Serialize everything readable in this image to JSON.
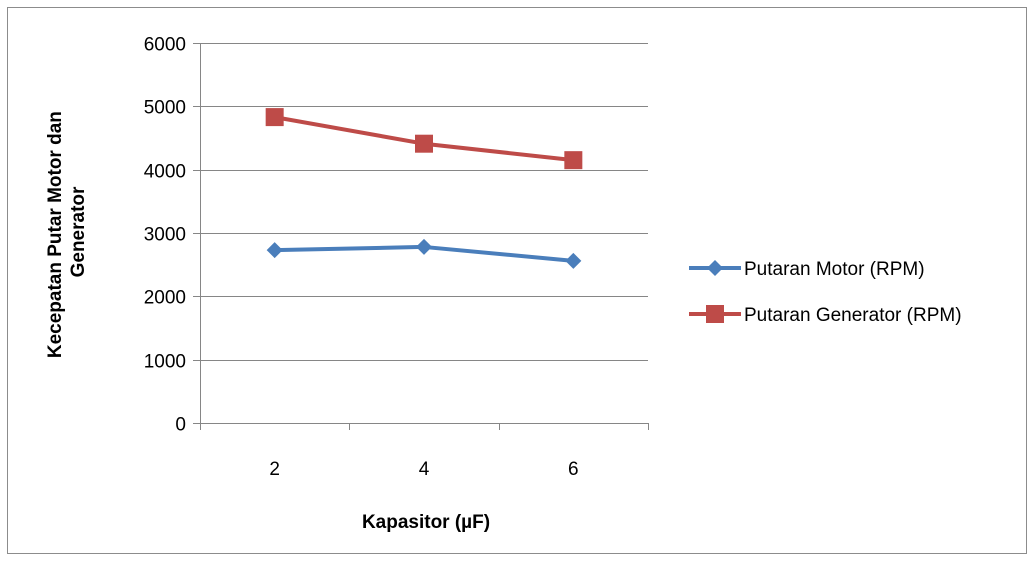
{
  "chart_data": {
    "type": "line",
    "title": "",
    "xlabel": "Kapasitor (µF)",
    "ylabel_lines": [
      "Kecepatan Putar Motor dan",
      "Generator"
    ],
    "categories": [
      "2",
      "4",
      "6"
    ],
    "ylim": [
      0,
      6000
    ],
    "yticks": [
      0,
      1000,
      2000,
      3000,
      4000,
      5000,
      6000
    ],
    "grid": "horizontal",
    "legend_position": "right",
    "series": [
      {
        "name": "Putaran Motor (RPM)",
        "values": [
          2730,
          2780,
          2560
        ],
        "color": "#4a7ebb",
        "marker": "diamond"
      },
      {
        "name": "Putaran Generator (RPM)",
        "values": [
          4830,
          4410,
          4150
        ],
        "color": "#be4b48",
        "marker": "square"
      }
    ]
  }
}
